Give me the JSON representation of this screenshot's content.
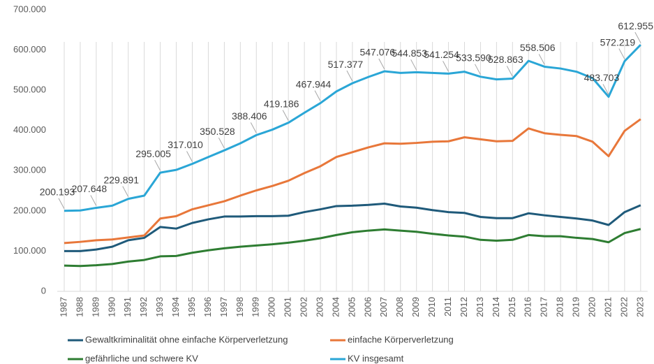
{
  "chart_data": {
    "type": "line",
    "categories": [
      "1987",
      "1988",
      "1989",
      "1990",
      "1991",
      "1992",
      "1993",
      "1994",
      "1995",
      "1996",
      "1997",
      "1998",
      "1999",
      "2000",
      "2001",
      "2002",
      "2003",
      "2004",
      "2005",
      "2006",
      "2007",
      "2008",
      "2009",
      "2010",
      "2011",
      "2012",
      "2013",
      "2014",
      "2015",
      "2016",
      "2017",
      "2018",
      "2019",
      "2020",
      "2021",
      "2022",
      "2023"
    ],
    "series": [
      {
        "name": "Gewaltkriminalität ohne einfache Körperverletzung",
        "color": "#1f5a7a",
        "values": [
          100000,
          100000,
          104000,
          111000,
          127000,
          133000,
          160000,
          156000,
          170000,
          179000,
          186000,
          186000,
          187000,
          187000,
          188000,
          197000,
          204000,
          212000,
          213000,
          215000,
          218000,
          211000,
          208000,
          202000,
          197000,
          195000,
          185000,
          182000,
          182000,
          194000,
          189000,
          185000,
          181000,
          176000,
          165000,
          197000,
          214000
        ]
      },
      {
        "name": "einfache Körperverletzung",
        "color": "#e8773a",
        "values": [
          120000,
          123000,
          127000,
          129000,
          134000,
          139000,
          181000,
          187000,
          204000,
          214000,
          224000,
          238000,
          251000,
          262000,
          275000,
          294000,
          311000,
          334000,
          346000,
          358000,
          368000,
          367000,
          369000,
          372000,
          373000,
          383000,
          378000,
          373000,
          374000,
          405000,
          393000,
          389000,
          386000,
          372000,
          336000,
          399000,
          428000
        ]
      },
      {
        "name": "gefährliche und schwere KV",
        "color": "#2e7d32",
        "values": [
          64000,
          63000,
          65000,
          68000,
          74000,
          78000,
          87000,
          88000,
          96000,
          102000,
          107000,
          111000,
          114000,
          117000,
          121000,
          126000,
          132000,
          140000,
          147000,
          151000,
          154000,
          151000,
          148000,
          143000,
          139000,
          136000,
          128000,
          126000,
          128000,
          140000,
          137000,
          137000,
          133000,
          130000,
          122000,
          145000,
          155000
        ]
      },
      {
        "name": "KV insgesamt",
        "color": "#2aa6d6",
        "values": [
          200193,
          201000,
          207648,
          213000,
          229891,
          238000,
          295005,
          302000,
          317010,
          334000,
          350528,
          368000,
          388406,
          402000,
          419186,
          444000,
          467944,
          497000,
          517377,
          533000,
          547076,
          543000,
          544853,
          543000,
          541254,
          546000,
          533590,
          527000,
          528863,
          573000,
          558506,
          554000,
          546000,
          530000,
          483703,
          572219,
          612955
        ],
        "value_labels": [
          "200.193",
          null,
          "207.648",
          null,
          "229.891",
          null,
          "295.005",
          null,
          "317.010",
          null,
          "350.528",
          null,
          "388.406",
          null,
          "419.186",
          null,
          "467.944",
          null,
          "517.377",
          null,
          "547.076",
          null,
          "544.853",
          null,
          "541.254",
          null,
          "533.590",
          null,
          "528.863",
          null,
          "558.506",
          null,
          null,
          null,
          "483.703",
          "572.219",
          "612.955"
        ]
      }
    ],
    "ylim": [
      0,
      700000
    ],
    "yticks": [
      0,
      {
        "value": 100000,
        "label": "100.000"
      },
      {
        "value": 200000,
        "label": "200.000"
      },
      {
        "value": 300000,
        "label": "300.000"
      },
      {
        "value": 400000,
        "label": "400.000"
      },
      {
        "value": 500000,
        "label": "500.000"
      },
      {
        "value": 600000,
        "label": "600.000"
      },
      {
        "value": 700000,
        "label": "700.000"
      }
    ],
    "grid": "x",
    "legend": "bottom"
  }
}
